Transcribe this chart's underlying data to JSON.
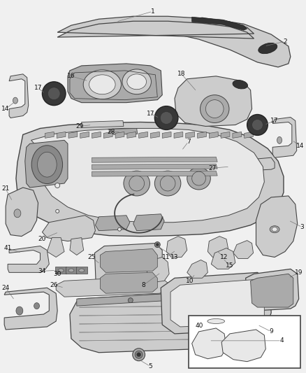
{
  "bg_color": "#f0f0f0",
  "fig_width": 4.38,
  "fig_height": 5.33,
  "dpi": 100,
  "lc": "#444444",
  "fc_light": "#e8e8e8",
  "fc_mid": "#cccccc",
  "fc_dark": "#aaaaaa",
  "fc_darker": "#888888",
  "fc_black": "#333333",
  "label_fontsize": 6.5,
  "label_color": "#111111"
}
